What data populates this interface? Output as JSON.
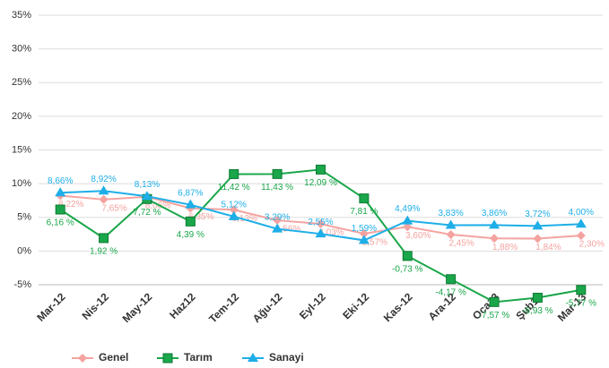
{
  "chart_data": {
    "type": "line",
    "categories": [
      "Mar-12",
      "Nis-12",
      "May-12",
      "Haz12",
      "Tem-12",
      "Ağu-12",
      "Eyl-12",
      "Eki-12",
      "Kas-12",
      "Ara-12",
      "Oca13",
      "Şub13",
      "Mar-13"
    ],
    "series": [
      {
        "name": "Genel",
        "color": "#f4a3a0",
        "marker": "diamond",
        "values": [
          8.22,
          7.65,
          8.06,
          6.35,
          6.13,
          4.56,
          4.03,
          2.57,
          3.6,
          2.45,
          1.88,
          1.84,
          2.3
        ],
        "value_labels": [
          "8,22%",
          "7,65%",
          "8,06%",
          "6,35%",
          "6,13%",
          "4,56%",
          "4,03%",
          "2,57%",
          "3,60%",
          "2,45%",
          "1,88%",
          "1,84%",
          "2,30%"
        ]
      },
      {
        "name": "Tarım",
        "color": "#1aa64a",
        "marker": "square",
        "values": [
          6.16,
          1.92,
          7.72,
          4.39,
          11.42,
          11.43,
          12.09,
          7.81,
          -0.73,
          -4.17,
          -7.57,
          -6.93,
          -5.77
        ],
        "value_labels": [
          "6,16 %",
          "1,92 %",
          "7,72 %",
          "4,39 %",
          "11,42 %",
          "11,43 %",
          "12,09 %",
          "7,81 %",
          "-0,73 %",
          "-4,17 %",
          "-7,57 %",
          "-6,93 %",
          "-5,77 %"
        ]
      },
      {
        "name": "Sanayi",
        "color": "#1eaee8",
        "marker": "triangle",
        "values": [
          8.66,
          8.92,
          8.13,
          6.87,
          5.12,
          3.29,
          2.55,
          1.59,
          4.49,
          3.83,
          3.86,
          3.72,
          4.0
        ],
        "value_labels": [
          "8,66%",
          "8,92%",
          "8,13%",
          "6,87%",
          "5,12%",
          "3,29%",
          "2,55%",
          "1,59%",
          "4,49%",
          "3,83%",
          "3,86%",
          "3,72%",
          "4,00%"
        ]
      }
    ],
    "ylim": [
      -5,
      35
    ],
    "yticks": [
      {
        "value": -5,
        "label": "-5%"
      },
      {
        "value": 0,
        "label": "0%"
      },
      {
        "value": 5,
        "label": "5%"
      },
      {
        "value": 10,
        "label": "10%"
      },
      {
        "value": 15,
        "label": "15%"
      },
      {
        "value": 20,
        "label": "20%"
      },
      {
        "value": 25,
        "label": "25%"
      },
      {
        "value": 30,
        "label": "30%"
      },
      {
        "value": 35,
        "label": "35%"
      }
    ],
    "grid": true,
    "legend": "bottom"
  }
}
